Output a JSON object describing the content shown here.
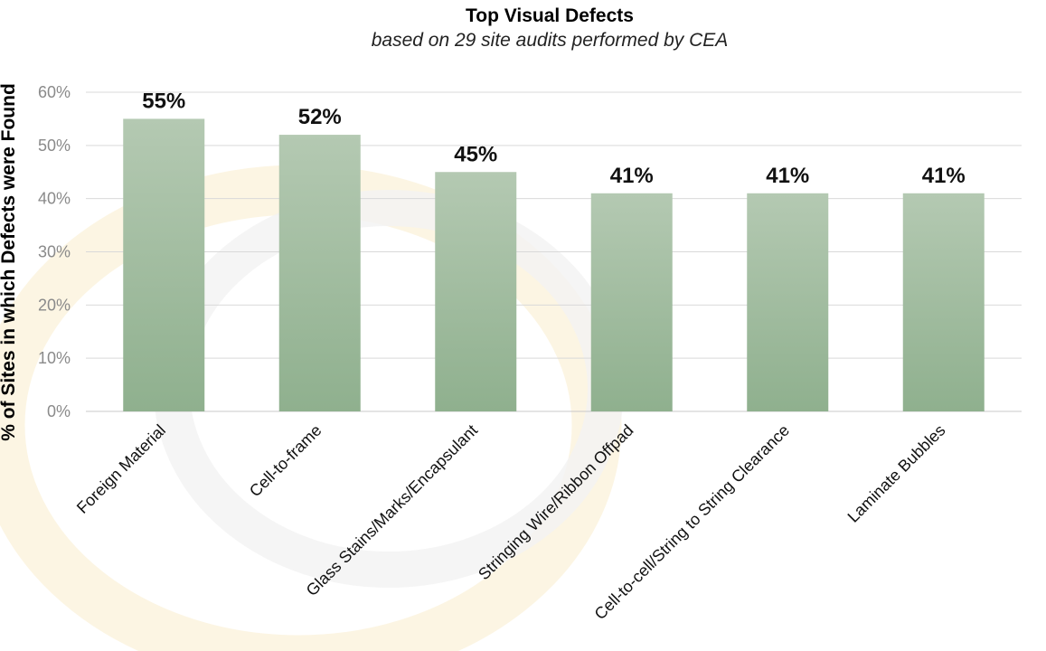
{
  "chart_data": {
    "type": "bar",
    "title": "Top Visual Defects",
    "subtitle": "based on 29 site audits performed by CEA",
    "ylabel": "% of Sites in which Defects were Found",
    "xlabel": "",
    "categories": [
      "Foreign Material",
      "Cell-to-frame",
      "Glass Stains/Marks/Encapsulant",
      "Stringing Wire/Ribbon Offpad",
      "Cell-to-cell/String to String Clearance",
      "Laminate Bubbles"
    ],
    "values": [
      55,
      52,
      45,
      41,
      41,
      41
    ],
    "data_labels": [
      "55%",
      "52%",
      "45%",
      "41%",
      "41%",
      "41%"
    ],
    "ylim": [
      0,
      60
    ],
    "yticks": [
      "0%",
      "10%",
      "20%",
      "30%",
      "40%",
      "50%",
      "60%"
    ],
    "grid": true,
    "legend": "none",
    "colors": {
      "bar_top": "#b4c9b2",
      "bar_bottom": "#8fb08e",
      "grid": "#d9d9d9"
    }
  }
}
